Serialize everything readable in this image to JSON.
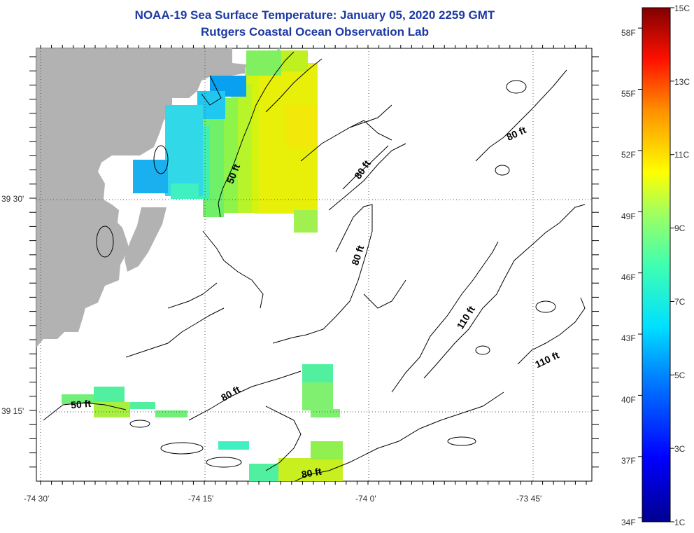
{
  "title_line1": "NOAA-19 Sea Surface Temperature:  January 05, 2020 2259 GMT",
  "title_line2": "Rutgers Coastal Ocean Observation Lab",
  "lon_ticks": [
    "-74 30'",
    "-74 15'",
    "-74 0'",
    "-73 45'"
  ],
  "lat_ticks": [
    "39 30'",
    "39 15'"
  ],
  "contours": [
    "50 ft",
    "80 ft",
    "110 ft"
  ],
  "contour_labels": [
    "50 ft",
    "50 ft",
    "80 ft",
    "80 ft",
    "80 ft",
    "80 ft",
    "80 ft",
    "110 ft",
    "110 ft"
  ],
  "colorbar": {
    "min_c": 1,
    "max_c": 15,
    "min_f": 34,
    "celsius_labels": [
      "15C",
      "13C",
      "11C",
      "9C",
      "7C",
      "5C",
      "3C",
      "1C"
    ],
    "fahrenheit_labels": [
      "58F",
      "55F",
      "52F",
      "49F",
      "46F",
      "43F",
      "40F",
      "37F",
      "34F"
    ]
  },
  "colors": {
    "title": "#1d3aa3",
    "land": "#b2b2b2",
    "contour": "#000000",
    "grid": "#555555"
  }
}
